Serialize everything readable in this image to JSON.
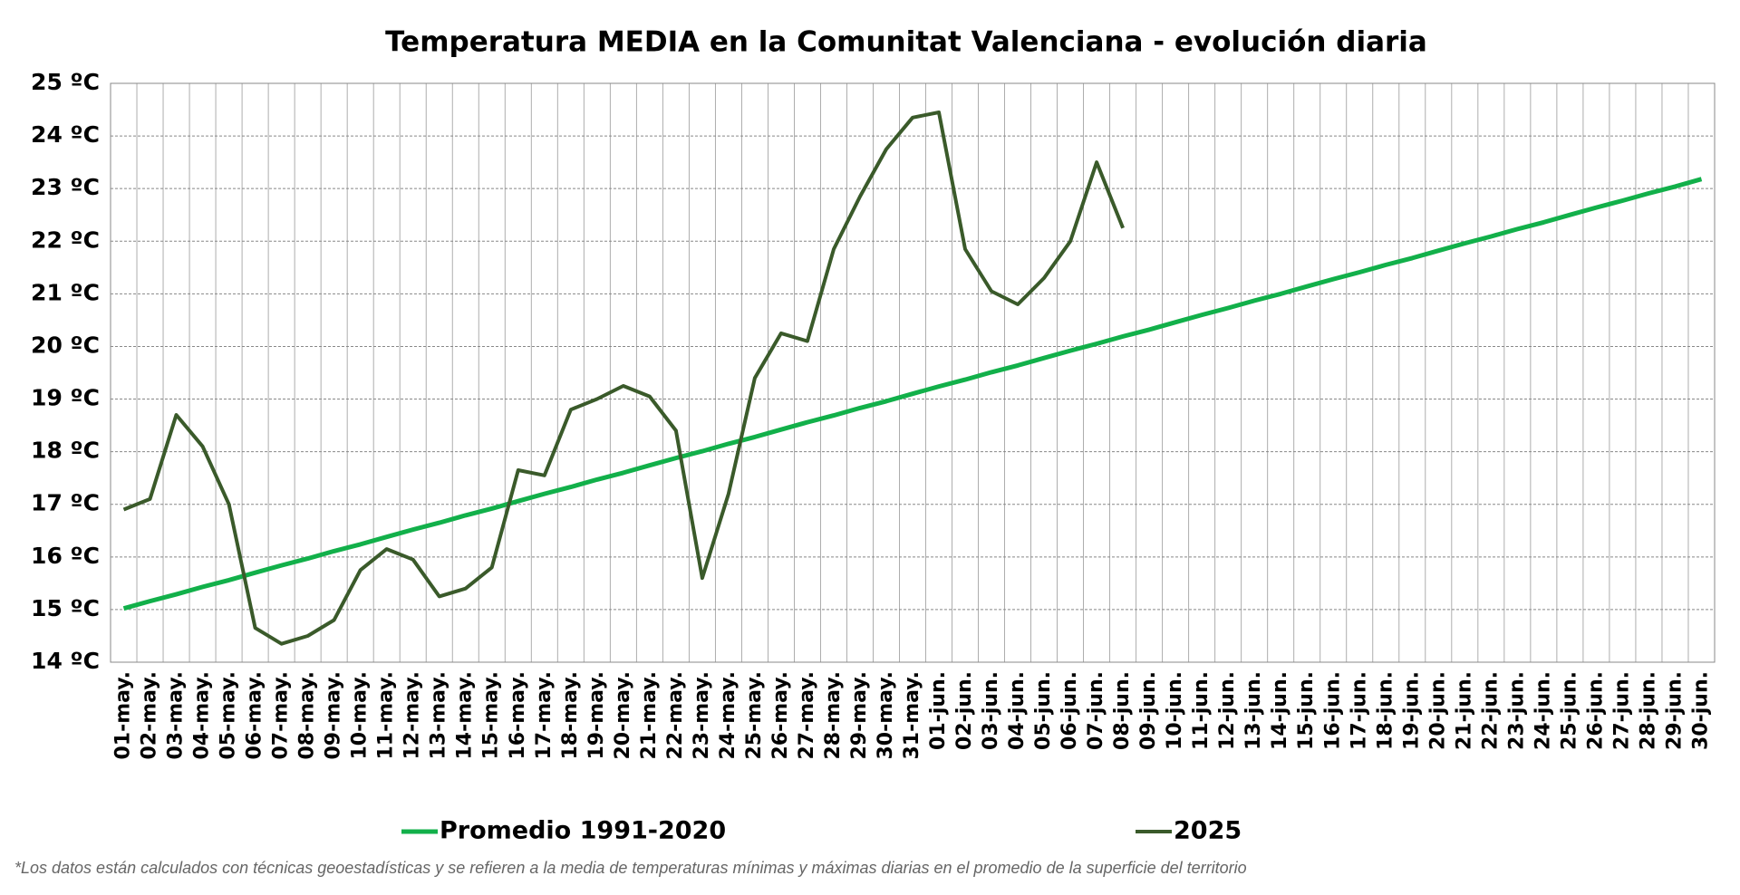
{
  "chart_data": {
    "type": "line",
    "title": "Temperatura MEDIA en la Comunitat Valenciana - evolución diaria",
    "categories": [
      "01-may.",
      "02-may.",
      "03-may.",
      "04-may.",
      "05-may.",
      "06-may.",
      "07-may.",
      "08-may.",
      "09-may.",
      "10-may.",
      "11-may.",
      "12-may.",
      "13-may.",
      "14-may.",
      "15-may.",
      "16-may.",
      "17-may.",
      "18-may.",
      "19-may.",
      "20-may.",
      "21-may.",
      "22-may.",
      "23-may.",
      "24-may.",
      "25-may.",
      "26-may.",
      "27-may.",
      "28-may.",
      "29-may.",
      "30-may.",
      "31-may.",
      "01-jun.",
      "02-jun.",
      "03-jun.",
      "04-jun.",
      "05-jun.",
      "06-jun.",
      "07-jun.",
      "08-jun.",
      "09-jun.",
      "10-jun.",
      "11-jun.",
      "12-jun.",
      "13-jun.",
      "14-jun.",
      "15-jun.",
      "16-jun.",
      "17-jun.",
      "18-jun.",
      "19-jun.",
      "20-jun.",
      "21-jun.",
      "22-jun.",
      "23-jun.",
      "24-jun.",
      "25-jun.",
      "26-jun.",
      "27-jun.",
      "28-jun.",
      "29-jun.",
      "30-jun."
    ],
    "series": [
      {
        "name": "Promedio 1991-2020",
        "color": "#12b04a",
        "width": 5,
        "values": [
          15.02,
          15.16,
          15.29,
          15.43,
          15.56,
          15.7,
          15.84,
          15.97,
          16.11,
          16.24,
          16.38,
          16.52,
          16.65,
          16.79,
          16.92,
          17.06,
          17.2,
          17.33,
          17.47,
          17.6,
          17.74,
          17.88,
          18.01,
          18.15,
          18.28,
          18.42,
          18.56,
          18.69,
          18.83,
          18.96,
          19.1,
          19.24,
          19.37,
          19.51,
          19.64,
          19.78,
          19.92,
          20.05,
          20.19,
          20.32,
          20.46,
          20.6,
          20.73,
          20.87,
          21.0,
          21.14,
          21.28,
          21.41,
          21.55,
          21.68,
          21.82,
          21.96,
          22.09,
          22.23,
          22.36,
          22.5,
          22.64,
          22.77,
          22.91,
          23.04,
          23.18
        ]
      },
      {
        "name": "2025",
        "color": "#3a5a2a",
        "width": 4,
        "values": [
          16.9,
          17.1,
          18.7,
          18.1,
          17.0,
          14.65,
          14.35,
          14.5,
          14.8,
          15.75,
          16.15,
          15.95,
          15.25,
          15.4,
          15.8,
          17.65,
          17.55,
          18.8,
          19.0,
          19.25,
          19.05,
          18.4,
          15.6,
          17.2,
          19.4,
          20.25,
          20.1,
          21.85,
          22.85,
          23.75,
          24.35,
          24.45,
          21.85,
          21.05,
          20.8,
          21.3,
          22.0,
          23.5,
          22.25,
          null,
          null,
          null,
          null,
          null,
          null,
          null,
          null,
          null,
          null,
          null,
          null,
          null,
          null,
          null,
          null,
          null,
          null,
          null,
          null,
          null,
          null
        ]
      }
    ],
    "ylim": [
      14,
      25
    ],
    "yticks": [
      {
        "value": 14,
        "label": "14 ºC"
      },
      {
        "value": 15,
        "label": "15 ºC"
      },
      {
        "value": 16,
        "label": "16 ºC"
      },
      {
        "value": 17,
        "label": "17 ºC"
      },
      {
        "value": 18,
        "label": "18 ºC"
      },
      {
        "value": 19,
        "label": "19 ºC"
      },
      {
        "value": 20,
        "label": "20 ºC"
      },
      {
        "value": 21,
        "label": "21 ºC"
      },
      {
        "value": 22,
        "label": "22 ºC"
      },
      {
        "value": 23,
        "label": "23 ºC"
      },
      {
        "value": 24,
        "label": "24 ºC"
      },
      {
        "value": 25,
        "label": "25 ºC"
      }
    ],
    "grid": true,
    "legend": "bottom",
    "footnote": "*Los datos están calculados con técnicas geoestadísticas y se refieren a la media de temperaturas mínimas y máximas diarias en el promedio de la superficie del territorio"
  }
}
